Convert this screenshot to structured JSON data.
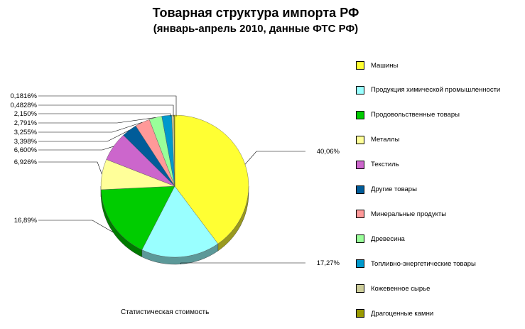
{
  "chart_data": {
    "type": "pie",
    "title": "Товарная структура импорта РФ",
    "subtitle": "(январь-апрель 2010, данные ФТС РФ)",
    "caption": "Статистическая стоимость",
    "legend_position": "right",
    "slices": [
      {
        "name": "Машины",
        "value": 40.06,
        "label": "40,06%",
        "color": "#ffff33"
      },
      {
        "name": "Продукция химической промышленности",
        "value": 17.27,
        "label": "17,27%",
        "color": "#99ffff"
      },
      {
        "name": "Продовольственные товары",
        "value": 16.89,
        "label": "16,89%",
        "color": "#00cc00"
      },
      {
        "name": "Металлы",
        "value": 6.926,
        "label": "6,926%",
        "color": "#ffff99"
      },
      {
        "name": "Текстиль",
        "value": 6.6,
        "label": "6,600%",
        "color": "#cc66cc"
      },
      {
        "name": "Другие товары",
        "value": 3.398,
        "label": "3,398%",
        "color": "#005c99"
      },
      {
        "name": "Минеральные продукты",
        "value": 3.255,
        "label": "3,255%",
        "color": "#ff9999"
      },
      {
        "name": "Древесина",
        "value": 2.791,
        "label": "2,791%",
        "color": "#99ff99"
      },
      {
        "name": "Топливно-энергетические товары",
        "value": 2.15,
        "label": "2,150%",
        "color": "#0099cc"
      },
      {
        "name": "Кожевенное сырье",
        "value": 0.4828,
        "label": "0,4828%",
        "color": "#cccc99"
      },
      {
        "name": "Драгоценные камни",
        "value": 0.1816,
        "label": "0,1816%",
        "color": "#999900"
      }
    ]
  }
}
